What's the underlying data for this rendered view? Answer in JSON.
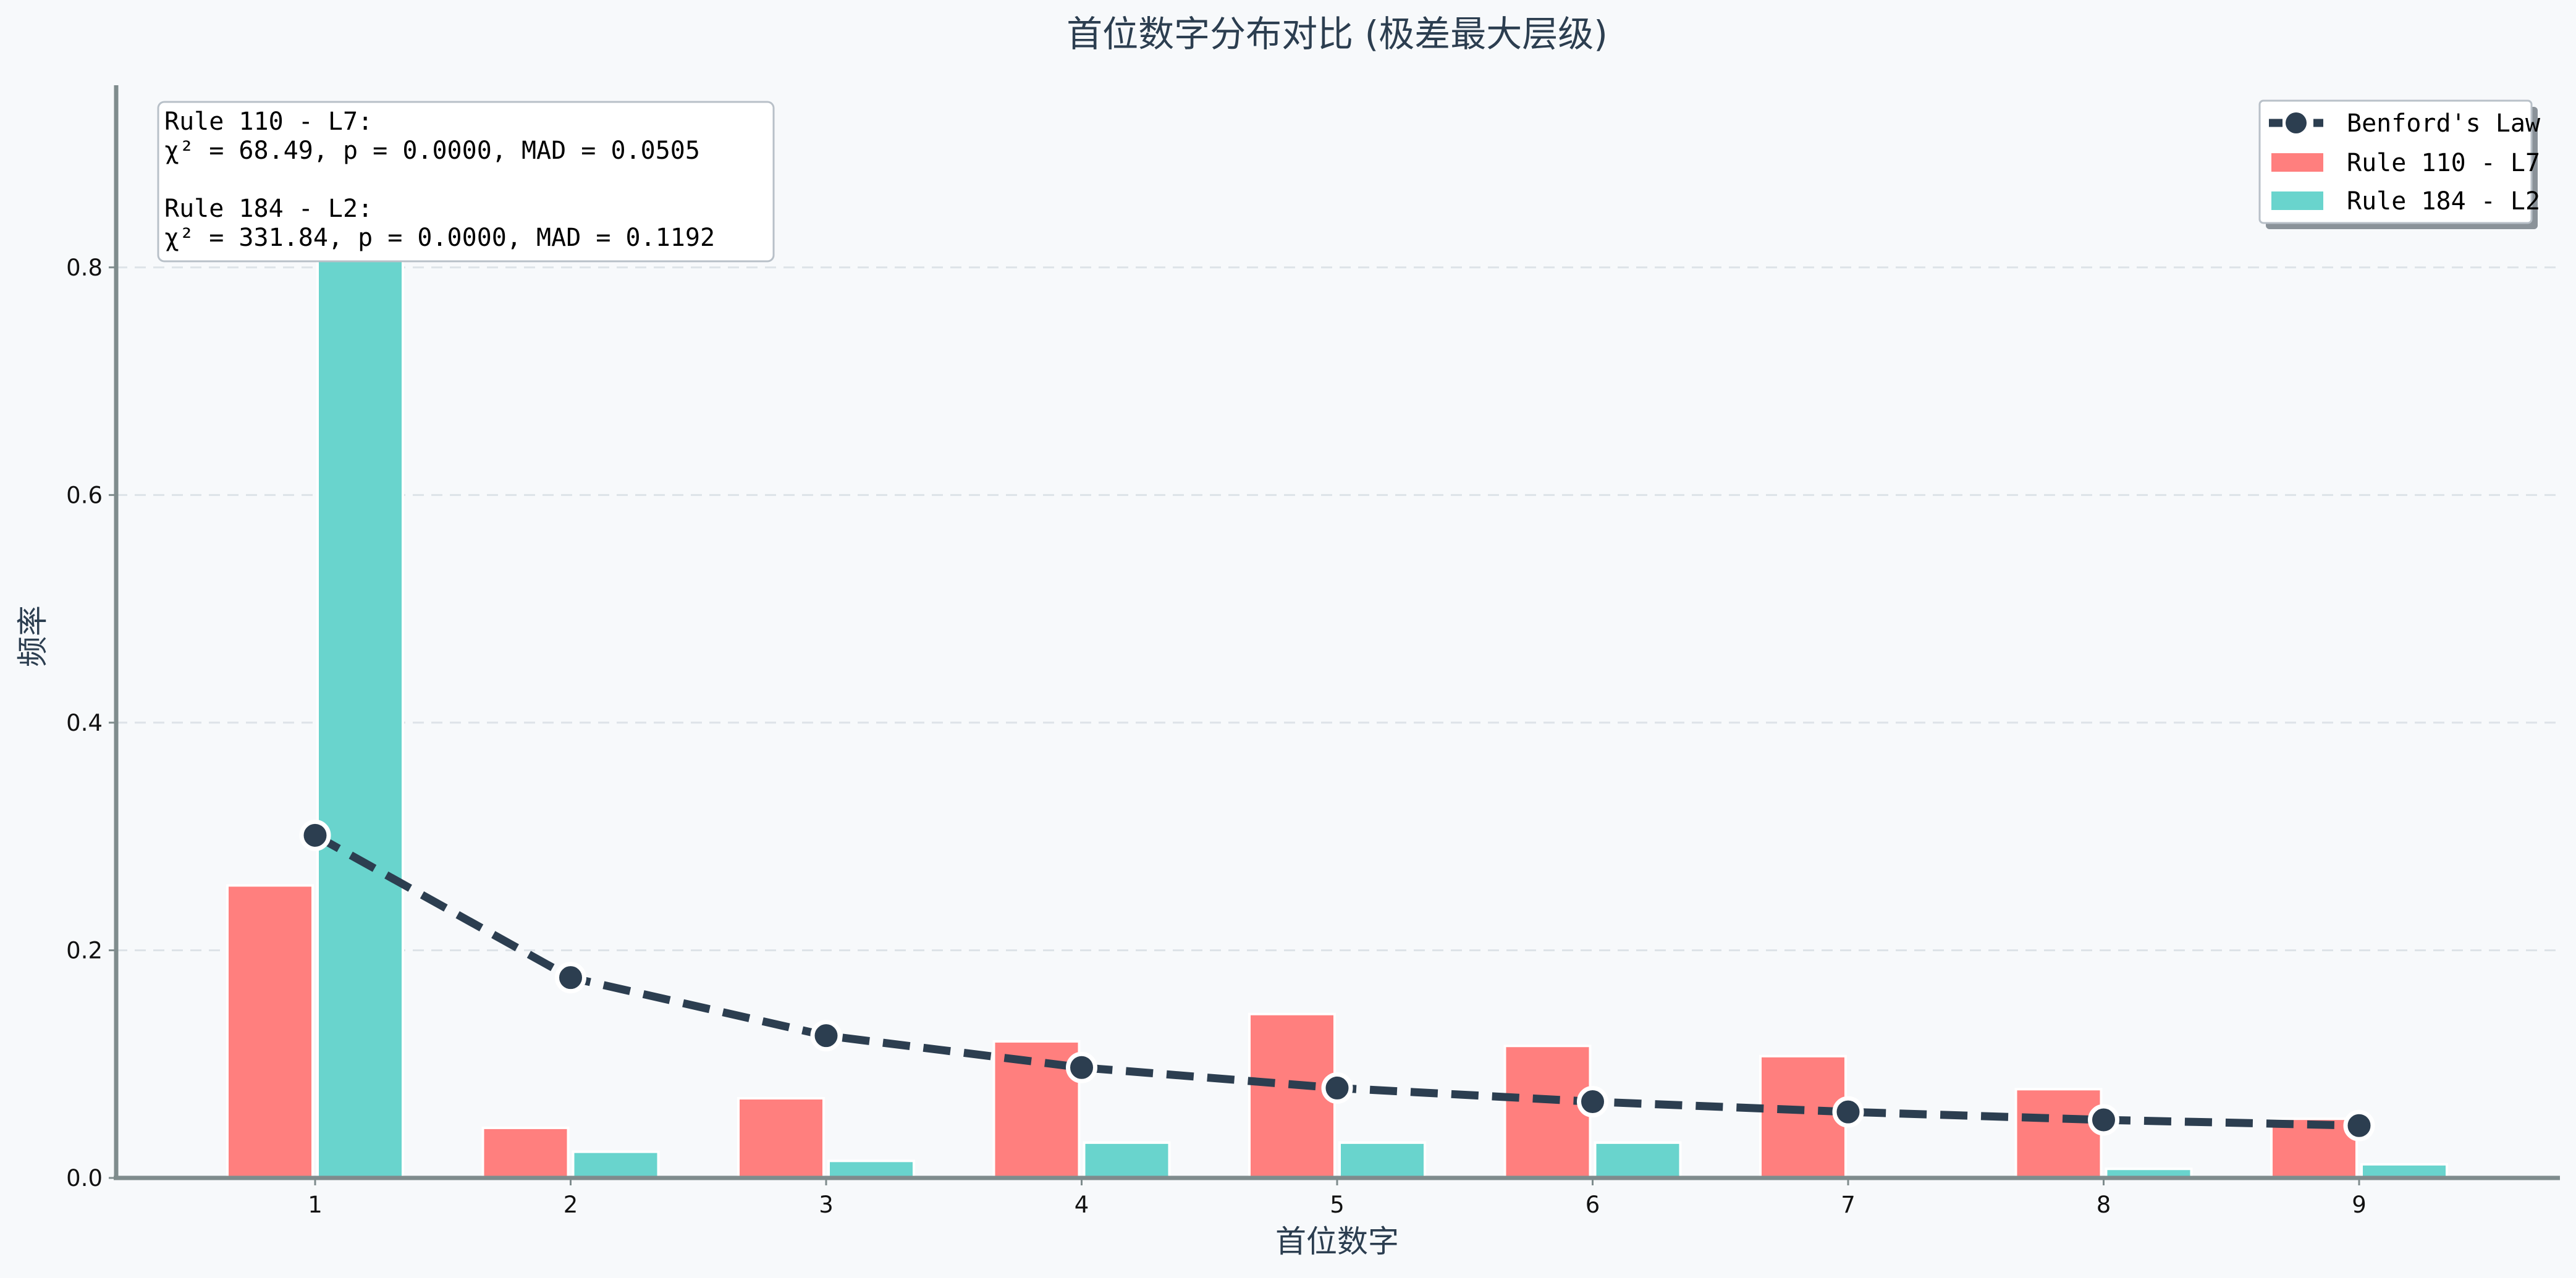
{
  "chart_data": {
    "type": "bar",
    "title": "首位数字分布对比 (极差最大层级)",
    "xlabel": "首位数字",
    "ylabel": "频率",
    "categories": [
      "1",
      "2",
      "3",
      "4",
      "5",
      "6",
      "7",
      "8",
      "9"
    ],
    "ylim": [
      0,
      0.96
    ],
    "yticks": [
      "0.0",
      "0.2",
      "0.4",
      "0.6",
      "0.8"
    ],
    "yticks_values": [
      0,
      0.2,
      0.4,
      0.6,
      0.8
    ],
    "grid": "horizontal dashed",
    "legend_placement": "top-right",
    "series": [
      {
        "name": "Rule 110 - L7",
        "type": "bar",
        "color": "#ff7f7e",
        "values": [
          0.257,
          0.044,
          0.07,
          0.12,
          0.144,
          0.116,
          0.107,
          0.078,
          0.052
        ]
      },
      {
        "name": "Rule 184 - L2",
        "type": "bar",
        "color": "#69d4cd",
        "values": [
          0.836,
          0.023,
          0.015,
          0.031,
          0.031,
          0.031,
          0.0,
          0.008,
          0.012
        ]
      },
      {
        "name": "Benford's Law",
        "type": "line",
        "color": "#2c3e50",
        "values": [
          0.301,
          0.176,
          0.125,
          0.097,
          0.079,
          0.067,
          0.058,
          0.051,
          0.046
        ]
      }
    ],
    "annotation": {
      "lines": [
        "Rule 110 - L7:",
        "  χ² = 68.49, p = 0.0000, MAD = 0.0505",
        "",
        "Rule 184 - L2:",
        "  χ² = 331.84, p = 0.0000, MAD = 0.1192"
      ]
    }
  }
}
